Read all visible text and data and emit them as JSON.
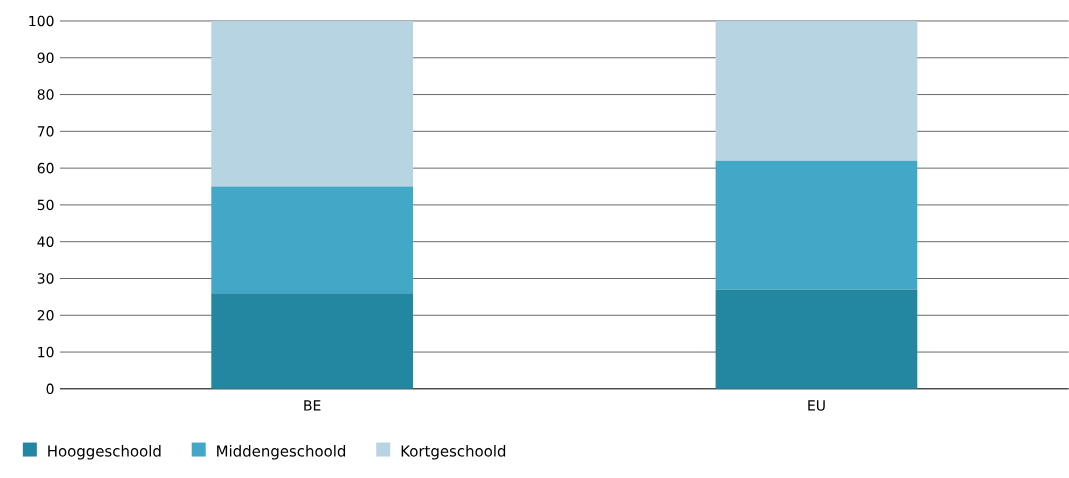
{
  "chart_data": {
    "type": "bar",
    "stacked": true,
    "categories": [
      "BE",
      "EU"
    ],
    "series": [
      {
        "name": "Hooggeschoold",
        "color": "#2387a1",
        "values": [
          26,
          27
        ]
      },
      {
        "name": "Middengeschoold",
        "color": "#43a8c8",
        "values": [
          29,
          35
        ]
      },
      {
        "name": "Kortgeschoold",
        "color": "#b6d4e1",
        "values": [
          45,
          38
        ]
      }
    ],
    "ylim": [
      0,
      100
    ],
    "yticks": [
      0,
      10,
      20,
      30,
      40,
      50,
      60,
      70,
      80,
      90,
      100
    ],
    "grid": "y",
    "legend": "bottom left"
  }
}
